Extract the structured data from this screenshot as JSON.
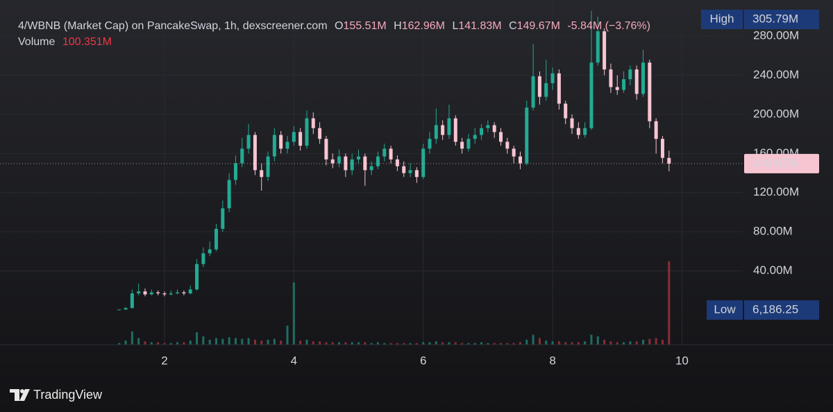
{
  "chart_data": {
    "type": "candlestick",
    "header": {
      "title": "4/WBNB (Market Cap) on PancakeSwap, 1h, dexscreener.com",
      "ohlc_letters": [
        "O",
        "H",
        "L",
        "C"
      ],
      "ohlc_labels": [
        "155.51M",
        "162.96M",
        "141.83M",
        "149.67M"
      ],
      "change_label": "-5.84M (−3.76%)"
    },
    "candles": {
      "up_color": "#22ab94",
      "down_color": "#f7c5d2",
      "x": [
        1.3,
        1.4,
        1.5,
        1.6,
        1.7,
        1.8,
        1.9,
        2.0,
        2.1,
        2.2,
        2.3,
        2.4,
        2.5,
        2.6,
        2.7,
        2.8,
        2.9,
        3.0,
        3.1,
        3.2,
        3.3,
        3.4,
        3.5,
        3.6,
        3.7,
        3.8,
        3.9,
        4.0,
        4.1,
        4.2,
        4.3,
        4.4,
        4.5,
        4.6,
        4.7,
        4.8,
        4.9,
        5.0,
        5.1,
        5.2,
        5.3,
        5.4,
        5.5,
        5.6,
        5.7,
        5.8,
        5.9,
        6.0,
        6.1,
        6.2,
        6.3,
        6.4,
        6.5,
        6.6,
        6.7,
        6.8,
        6.9,
        7.0,
        7.1,
        7.2,
        7.3,
        7.4,
        7.5,
        7.6,
        7.7,
        7.8,
        7.9,
        8.0,
        8.1,
        8.2,
        8.3,
        8.4,
        8.5,
        8.6,
        8.7,
        8.8,
        8.9,
        9.0,
        9.1,
        9.2,
        9.3,
        9.4,
        9.5,
        9.6,
        9.7,
        9.8
      ],
      "open": [
        0.3,
        0.5,
        2,
        17,
        19,
        16,
        18,
        17,
        16,
        17,
        18,
        17,
        21,
        47,
        58,
        62,
        83,
        104,
        133,
        150,
        165,
        179,
        143,
        136,
        157,
        179,
        165,
        172,
        182,
        168,
        196,
        186,
        175,
        154,
        150,
        157,
        143,
        154,
        157,
        143,
        147,
        157,
        165,
        154,
        147,
        140,
        143,
        136,
        165,
        175,
        189,
        179,
        196,
        172,
        165,
        175,
        179,
        186,
        189,
        182,
        172,
        165,
        157,
        150,
        207,
        239,
        218,
        232,
        242,
        211,
        196,
        186,
        179,
        186,
        253,
        285,
        246,
        228,
        225,
        236,
        246,
        221,
        253,
        193,
        175,
        155.51
      ],
      "high": [
        0.6,
        3,
        21,
        27,
        22,
        21,
        20,
        19,
        20,
        21,
        20,
        25,
        52,
        64,
        70,
        88,
        112,
        140,
        158,
        176,
        190,
        182,
        150,
        162,
        186,
        183,
        178,
        188,
        186,
        204,
        202,
        192,
        178,
        160,
        164,
        160,
        160,
        164,
        160,
        152,
        162,
        170,
        168,
        158,
        152,
        150,
        146,
        170,
        182,
        206,
        194,
        210,
        199,
        176,
        180,
        186,
        190,
        194,
        192,
        186,
        176,
        168,
        162,
        214,
        272,
        244,
        256,
        248,
        246,
        214,
        200,
        192,
        192,
        305.79,
        300,
        288,
        252,
        240,
        244,
        250,
        250,
        266,
        256,
        196,
        178,
        162.96
      ],
      "low": [
        0.00618625,
        0.4,
        1.5,
        15,
        14,
        15,
        15,
        14,
        15,
        16,
        15,
        16,
        20,
        44,
        55,
        60,
        80,
        100,
        128,
        146,
        160,
        138,
        122,
        132,
        152,
        160,
        160,
        168,
        163,
        165,
        180,
        170,
        148,
        145,
        146,
        136,
        138,
        150,
        127,
        138,
        144,
        152,
        150,
        142,
        136,
        136,
        130,
        134,
        160,
        170,
        174,
        175,
        168,
        160,
        162,
        170,
        174,
        182,
        176,
        168,
        160,
        150,
        144,
        148,
        204,
        210,
        214,
        225,
        205,
        190,
        180,
        175,
        176,
        184,
        250,
        240,
        222,
        220,
        222,
        230,
        215,
        218,
        186,
        160,
        150,
        141.83
      ],
      "close": [
        0.5,
        2,
        17,
        19,
        16,
        18,
        17,
        16,
        17,
        18,
        17,
        21,
        47,
        58,
        62,
        83,
        104,
        133,
        150,
        165,
        179,
        143,
        136,
        157,
        179,
        165,
        172,
        182,
        168,
        196,
        186,
        175,
        154,
        150,
        157,
        143,
        154,
        157,
        143,
        147,
        157,
        165,
        154,
        147,
        140,
        143,
        136,
        165,
        175,
        189,
        179,
        196,
        172,
        165,
        175,
        179,
        186,
        189,
        182,
        172,
        165,
        157,
        150,
        207,
        239,
        218,
        232,
        242,
        211,
        196,
        186,
        179,
        186,
        253,
        285,
        246,
        228,
        225,
        236,
        246,
        221,
        253,
        193,
        175,
        155.51,
        149.67
      ]
    },
    "volume": {
      "name": "Volume",
      "last_label": "100.351M",
      "up_color": "#1f6e63",
      "down_color": "#8a2d37",
      "ylim": [
        0,
        415
      ],
      "values": [
        2,
        5,
        16,
        8,
        4,
        3,
        3,
        2,
        2,
        3,
        3,
        5,
        15,
        10,
        6,
        8,
        7,
        9,
        8,
        7,
        8,
        6,
        5,
        6,
        7,
        5,
        23,
        75,
        5,
        6,
        4,
        4,
        3,
        3,
        3,
        3,
        3,
        3,
        3,
        2,
        3,
        2,
        2,
        2,
        2,
        2,
        2,
        3,
        3,
        4,
        3,
        3,
        3,
        2,
        2,
        2,
        3,
        2,
        2,
        2,
        2,
        2,
        3,
        6,
        12,
        8,
        5,
        4,
        4,
        3,
        3,
        3,
        4,
        12,
        10,
        6,
        4,
        3,
        3,
        4,
        4,
        6,
        7,
        8,
        6,
        100.351
      ]
    },
    "xlim": [
      -0.543,
      10.94
    ],
    "xticks": [
      2,
      4,
      6,
      8,
      10
    ],
    "ylim": [
      -35.5,
      317
    ],
    "yticks": [
      {
        "value": 40,
        "label": "40.00M"
      },
      {
        "value": 80,
        "label": "80.00M"
      },
      {
        "value": 120,
        "label": "120.00M"
      },
      {
        "value": 160,
        "label": "160.00M"
      },
      {
        "value": 200,
        "label": "200.00M"
      },
      {
        "value": 240,
        "label": "240.00M"
      },
      {
        "value": 280,
        "label": "280.00M"
      }
    ],
    "grid": true,
    "high_box": {
      "label": "High",
      "value_label": "305.79M"
    },
    "low_box": {
      "label": "Low",
      "value_label": "6,186.25"
    },
    "price_label": "149.67M",
    "brand": "TradingView"
  }
}
